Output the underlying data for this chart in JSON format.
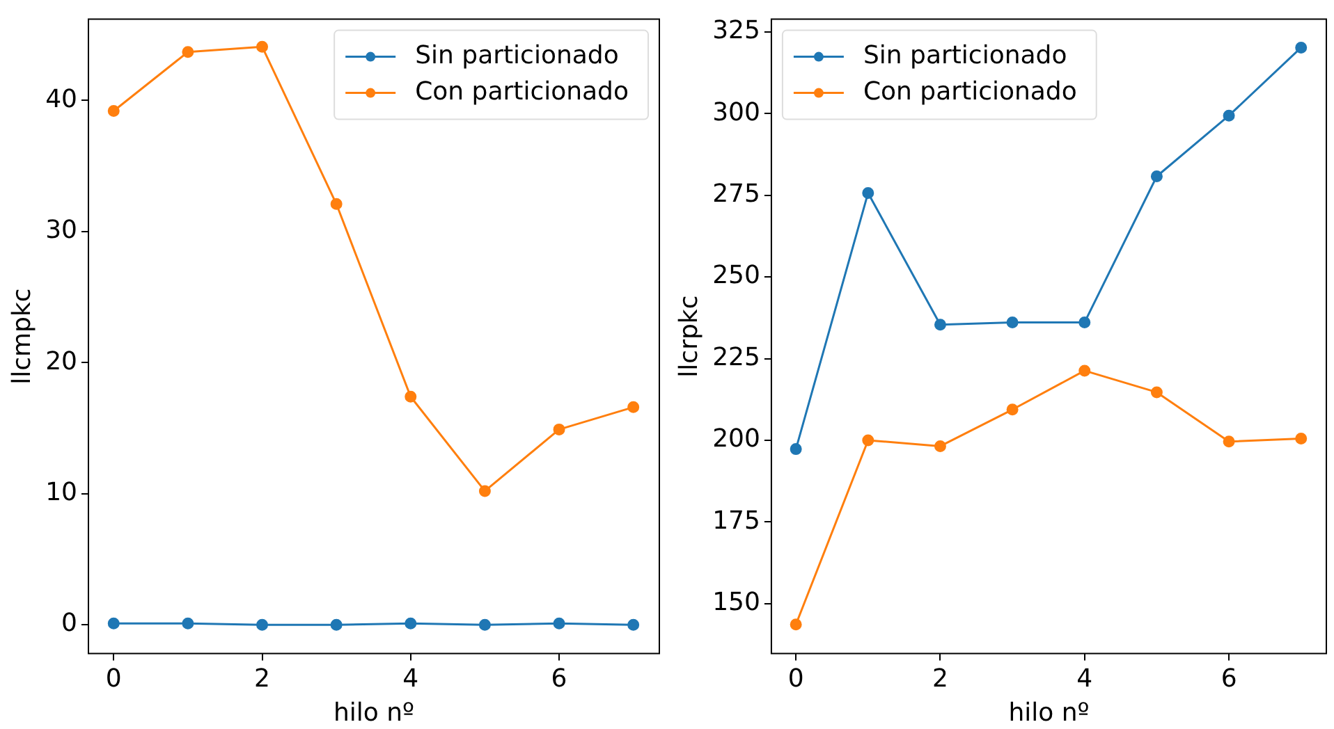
{
  "chart_data": [
    {
      "type": "line",
      "xlabel": "hilo nº",
      "ylabel": "llcmpkc",
      "x": [
        0,
        1,
        2,
        3,
        4,
        5,
        6,
        7
      ],
      "series": [
        {
          "name": "Sin particionado",
          "color": "#1f77b4",
          "values": [
            0.1,
            0.1,
            0,
            0,
            0.1,
            0,
            0.1,
            0
          ]
        },
        {
          "name": "Con particionado",
          "color": "#ff7f0e",
          "values": [
            39.2,
            43.7,
            44.1,
            32.1,
            17.4,
            10.2,
            14.9,
            16.6
          ]
        }
      ],
      "xlim": [
        -0.34,
        7.35
      ],
      "xticks": [
        0,
        2,
        4,
        6
      ],
      "ylim": [
        -2.2,
        46.2
      ],
      "yticks": [
        0,
        10,
        20,
        30,
        40
      ],
      "grid": false,
      "legend": "top right",
      "marker": "circle",
      "line_style": "solid"
    },
    {
      "type": "line",
      "xlabel": "hilo nº",
      "ylabel": "llcrpkc",
      "x": [
        0,
        1,
        2,
        3,
        4,
        5,
        6,
        7
      ],
      "series": [
        {
          "name": "Sin particionado",
          "color": "#1f77b4",
          "values": [
            197.3,
            275.7,
            235.4,
            236.1,
            236.1,
            280.8,
            299.4,
            320.2
          ]
        },
        {
          "name": "Con particionado",
          "color": "#ff7f0e",
          "values": [
            143.6,
            200,
            198.2,
            209.4,
            221.3,
            214.7,
            199.6,
            200.5
          ]
        }
      ],
      "xlim": [
        -0.34,
        7.35
      ],
      "xticks": [
        0,
        2,
        4,
        6
      ],
      "ylim": [
        134.7,
        328.9
      ],
      "yticks": [
        150,
        175,
        200,
        225,
        250,
        275,
        300,
        325
      ],
      "grid": false,
      "legend": "top left",
      "marker": "circle",
      "line_style": "solid"
    }
  ]
}
